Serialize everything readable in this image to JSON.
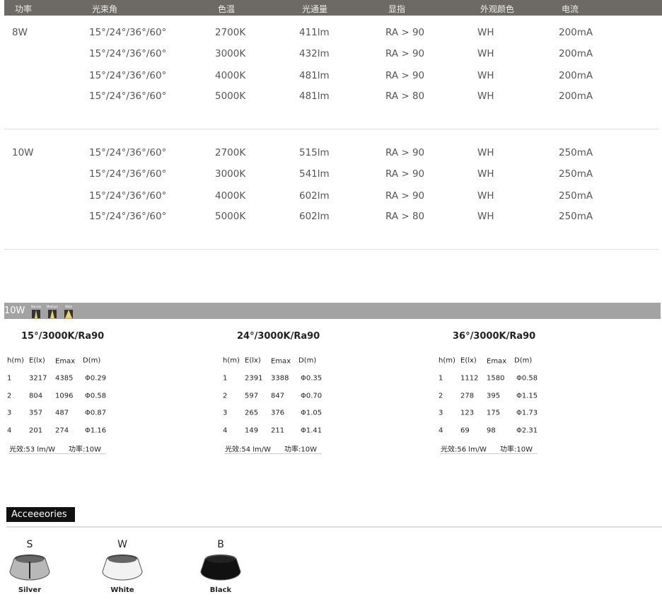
{
  "header": [
    "功率",
    "光束角",
    "色温",
    "光通量",
    "显指",
    "外观颜色",
    "电流"
  ],
  "groups": [
    {
      "power": "8W",
      "rows": [
        [
          "15°/24°/36°/60°",
          "2700K",
          "411lm",
          "RA > 90",
          "WH",
          "200mA"
        ],
        [
          "15°/24°/36°/60°",
          "3000K",
          "432lm",
          "RA > 90",
          "WH",
          "200mA"
        ],
        [
          "15°/24°/36°/60°",
          "4000K",
          "481lm",
          "RA > 90",
          "WH",
          "200mA"
        ],
        [
          "15°/24°/36°/60°",
          "5000K",
          "481lm",
          "RA > 80",
          "WH",
          "200mA"
        ]
      ]
    },
    {
      "power": "10W",
      "rows": [
        [
          "15°/24°/36°/60°",
          "2700K",
          "515lm",
          "RA > 90",
          "WH",
          "250mA"
        ],
        [
          "15°/24°/36°/60°",
          "3000K",
          "541lm",
          "RA > 90",
          "WH",
          "250mA"
        ],
        [
          "15°/24°/36°/60°",
          "4000K",
          "602lm",
          "RA > 90",
          "WH",
          "250mA"
        ],
        [
          "15°/24°/36°/60°",
          "5000K",
          "602lm",
          "RA > 80",
          "WH",
          "250mA"
        ]
      ]
    }
  ],
  "photometric": {
    "label": "10W",
    "beam_icons": [
      "Narrow",
      "Medium",
      "Wide"
    ],
    "columns": [
      "h(m)",
      "E(lx)",
      "Emax",
      "D(m)"
    ],
    "blocks": [
      {
        "title": "15°/3000K/Ra90",
        "rows": [
          [
            "1",
            "3217",
            "4385",
            "Φ0.29"
          ],
          [
            "2",
            "804",
            "1096",
            "Φ0.58"
          ],
          [
            "3",
            "357",
            "487",
            "Φ0.87"
          ],
          [
            "4",
            "201",
            "274",
            "Φ1.16"
          ]
        ],
        "efficacy": "光效:53 lm/W",
        "power": "功率:10W"
      },
      {
        "title": "24°/3000K/Ra90",
        "rows": [
          [
            "1",
            "2391",
            "3388",
            "Φ0.35"
          ],
          [
            "2",
            "597",
            "847",
            "Φ0.70"
          ],
          [
            "3",
            "265",
            "376",
            "Φ1.05"
          ],
          [
            "4",
            "149",
            "211",
            "Φ1.41"
          ]
        ],
        "efficacy": "光效:54 lm/W",
        "power": "功率:10W"
      },
      {
        "title": "36°/3000K/Ra90",
        "rows": [
          [
            "1",
            "1112",
            "1580",
            "Φ0.58"
          ],
          [
            "2",
            "278",
            "395",
            "Φ1.15"
          ],
          [
            "3",
            "123",
            "175",
            "Φ1.73"
          ],
          [
            "4",
            "69",
            "98",
            "Φ2.31"
          ]
        ],
        "efficacy": "光效:56 lm/W",
        "power": "功率:10W"
      }
    ]
  },
  "accessories": {
    "title": "Acceeeories",
    "items": [
      {
        "code": "S",
        "name": "Silver",
        "color": "#b8b8b8"
      },
      {
        "code": "W",
        "name": "White",
        "color": "#f2f2f2"
      },
      {
        "code": "B",
        "name": "Black",
        "color": "#111111"
      }
    ]
  }
}
